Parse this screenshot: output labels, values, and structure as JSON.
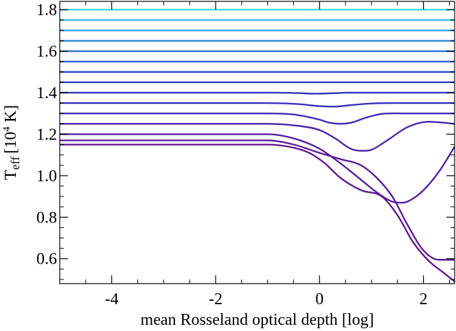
{
  "chart_data": {
    "type": "line",
    "xlabel": "mean Rosseland optical depth [log]",
    "ylabel_main": "T",
    "ylabel_sub": "eff",
    "ylabel_bracket_open": "[10",
    "ylabel_sup": "4",
    "ylabel_unit": " K]",
    "xlim": [
      -5,
      2.6
    ],
    "ylim": [
      0.48,
      1.84
    ],
    "x_ticks": [
      -4,
      -2,
      0,
      2
    ],
    "x_tick_labels": [
      "-4",
      "-2",
      "0",
      "2"
    ],
    "y_ticks": [
      0.6,
      0.8,
      1.0,
      1.2,
      1.4,
      1.6,
      1.8
    ],
    "y_tick_labels": [
      "0.6",
      "0.8",
      "1.0",
      "1.2",
      "1.4",
      "1.6",
      "1.8"
    ],
    "grid": false,
    "series": [
      {
        "color": "#3dd6e6",
        "x": [
          -5,
          2.6
        ],
        "y": [
          1.8,
          1.8
        ]
      },
      {
        "color": "#35b9e2",
        "x": [
          -5,
          2.6
        ],
        "y": [
          1.75,
          1.75
        ]
      },
      {
        "color": "#2f9ede",
        "x": [
          -5,
          2.6
        ],
        "y": [
          1.7,
          1.7
        ]
      },
      {
        "color": "#2b86da",
        "x": [
          -5,
          2.6
        ],
        "y": [
          1.65,
          1.65
        ]
      },
      {
        "color": "#2870d6",
        "x": [
          -5,
          2.6
        ],
        "y": [
          1.6,
          1.6
        ]
      },
      {
        "color": "#2a5dd2",
        "x": [
          -5,
          2.6
        ],
        "y": [
          1.55,
          1.55
        ]
      },
      {
        "color": "#2d4ccc",
        "x": [
          -5,
          2.6
        ],
        "y": [
          1.5,
          1.5
        ]
      },
      {
        "color": "#303ec6",
        "x": [
          -5,
          2.6
        ],
        "y": [
          1.45,
          1.45
        ]
      },
      {
        "color": "#3333c0",
        "x": [
          -5,
          -1.0,
          -0.4,
          -0.1,
          0.2,
          0.6,
          1.0,
          2.6
        ],
        "y": [
          1.4,
          1.4,
          1.398,
          1.395,
          1.397,
          1.4,
          1.4,
          1.4
        ]
      },
      {
        "color": "#392ebc",
        "x": [
          -5,
          -1.0,
          -0.4,
          0.0,
          0.3,
          0.6,
          1.0,
          1.5,
          2.6
        ],
        "y": [
          1.35,
          1.35,
          1.345,
          1.335,
          1.333,
          1.34,
          1.348,
          1.35,
          1.35
        ]
      },
      {
        "color": "#4028b5",
        "x": [
          -5,
          -1.2,
          -0.5,
          0.0,
          0.2,
          0.4,
          0.6,
          0.9,
          1.2,
          1.6,
          2.6
        ],
        "y": [
          1.3,
          1.3,
          1.295,
          1.27,
          1.255,
          1.25,
          1.255,
          1.28,
          1.298,
          1.3,
          1.3
        ]
      },
      {
        "color": "#4a22ab",
        "x": [
          -5,
          -1.0,
          -0.4,
          0.0,
          0.3,
          0.6,
          0.8,
          1.0,
          1.3,
          1.7,
          2.1,
          2.4,
          2.6
        ],
        "y": [
          1.25,
          1.25,
          1.24,
          1.22,
          1.18,
          1.13,
          1.12,
          1.125,
          1.17,
          1.235,
          1.26,
          1.255,
          1.25
        ]
      },
      {
        "color": "#541ea2",
        "x": [
          -5,
          -1.0,
          -0.5,
          0.0,
          0.4,
          0.8,
          1.1,
          1.4,
          1.6,
          1.8,
          2.0,
          2.3,
          2.6
        ],
        "y": [
          1.2,
          1.2,
          1.18,
          1.13,
          1.06,
          0.98,
          0.92,
          0.875,
          0.87,
          0.89,
          0.93,
          1.02,
          1.14
        ]
      },
      {
        "color": "#5c1a97",
        "x": [
          -5,
          -1.0,
          -0.5,
          0.0,
          0.4,
          0.8,
          1.1,
          1.4,
          1.7,
          2.0,
          2.3,
          2.6
        ],
        "y": [
          1.17,
          1.17,
          1.15,
          1.11,
          1.08,
          1.05,
          0.99,
          0.9,
          0.76,
          0.64,
          0.595,
          0.595
        ]
      },
      {
        "color": "#63178b",
        "x": [
          -5,
          -1.0,
          -0.5,
          -0.2,
          0.1,
          0.4,
          0.8,
          1.2,
          1.5,
          1.8,
          2.1,
          2.4,
          2.6
        ],
        "y": [
          1.15,
          1.15,
          1.135,
          1.11,
          1.06,
          0.99,
          0.93,
          0.9,
          0.81,
          0.68,
          0.59,
          0.53,
          0.49
        ]
      }
    ]
  }
}
